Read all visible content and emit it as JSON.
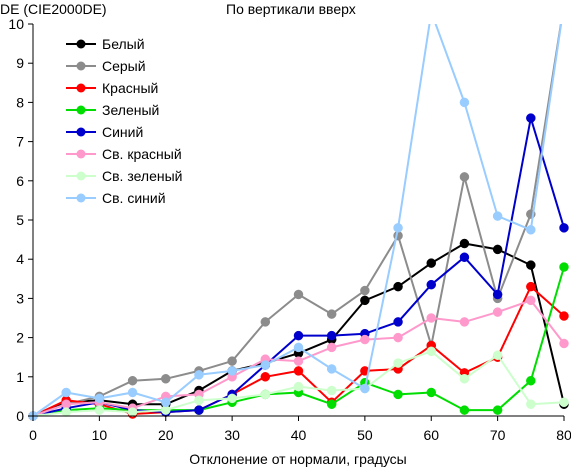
{
  "chart_data": {
    "type": "line",
    "title": "По вертикали вверх",
    "xlabel": "Отклонение от нормали, градусы",
    "ylabel": "DE (CIE2000DE)",
    "xlim": [
      0,
      80
    ],
    "ylim": [
      0,
      10
    ],
    "x_ticks": [
      0,
      10,
      20,
      30,
      40,
      50,
      60,
      70,
      80
    ],
    "y_ticks": [
      0,
      1,
      2,
      3,
      4,
      5,
      6,
      7,
      8,
      9,
      10
    ],
    "grid": false,
    "legend_position": "top-left",
    "x": [
      0,
      5,
      10,
      15,
      20,
      25,
      30,
      35,
      40,
      45,
      50,
      55,
      60,
      65,
      70,
      75,
      80
    ],
    "series": [
      {
        "name": "Белый",
        "color": "#000000",
        "values": [
          0.0,
          0.35,
          0.4,
          0.3,
          0.3,
          0.65,
          1.15,
          1.35,
          1.6,
          1.95,
          2.95,
          3.3,
          3.9,
          4.4,
          4.25,
          3.85,
          0.3
        ]
      },
      {
        "name": "Серый",
        "color": "#8c8c8c",
        "values": [
          0.0,
          0.3,
          0.5,
          0.9,
          0.95,
          1.15,
          1.4,
          2.4,
          3.1,
          2.6,
          3.2,
          4.6,
          1.8,
          6.1,
          3.0,
          5.15,
          10.5
        ]
      },
      {
        "name": "Красный",
        "color": "#ff0000",
        "values": [
          0.0,
          0.4,
          0.3,
          0.05,
          0.1,
          0.15,
          0.55,
          1.0,
          1.15,
          0.35,
          1.15,
          1.2,
          1.8,
          1.1,
          1.5,
          3.3,
          2.55
        ]
      },
      {
        "name": "Зеленый",
        "color": "#00dd00",
        "values": [
          0.0,
          0.15,
          0.2,
          0.15,
          0.15,
          0.15,
          0.35,
          0.55,
          0.6,
          0.3,
          0.85,
          0.55,
          0.6,
          0.15,
          0.15,
          0.9,
          3.8
        ]
      },
      {
        "name": "Синий",
        "color": "#0000cc",
        "values": [
          0.0,
          0.2,
          0.35,
          0.15,
          0.1,
          0.15,
          0.55,
          1.3,
          2.05,
          2.05,
          2.1,
          2.4,
          3.35,
          4.05,
          3.1,
          7.6,
          4.8
        ]
      },
      {
        "name": "Св. красный",
        "color": "#ff99cc",
        "values": [
          0.0,
          0.3,
          0.35,
          0.2,
          0.5,
          0.55,
          1.0,
          1.45,
          1.4,
          1.75,
          1.95,
          2.0,
          2.5,
          2.4,
          2.65,
          2.95,
          1.85
        ]
      },
      {
        "name": "Св. зеленый",
        "color": "#ccffcc",
        "values": [
          0.0,
          0.1,
          0.15,
          0.1,
          0.15,
          0.4,
          0.45,
          0.55,
          0.75,
          0.65,
          0.7,
          1.35,
          1.65,
          0.95,
          1.55,
          0.3,
          0.35
        ]
      },
      {
        "name": "Св. синий",
        "color": "#99ccff",
        "values": [
          0.0,
          0.6,
          0.45,
          0.6,
          0.35,
          1.05,
          1.15,
          1.3,
          1.75,
          1.2,
          0.7,
          4.8,
          10.3,
          8.0,
          5.1,
          4.75,
          10.5
        ]
      }
    ]
  }
}
